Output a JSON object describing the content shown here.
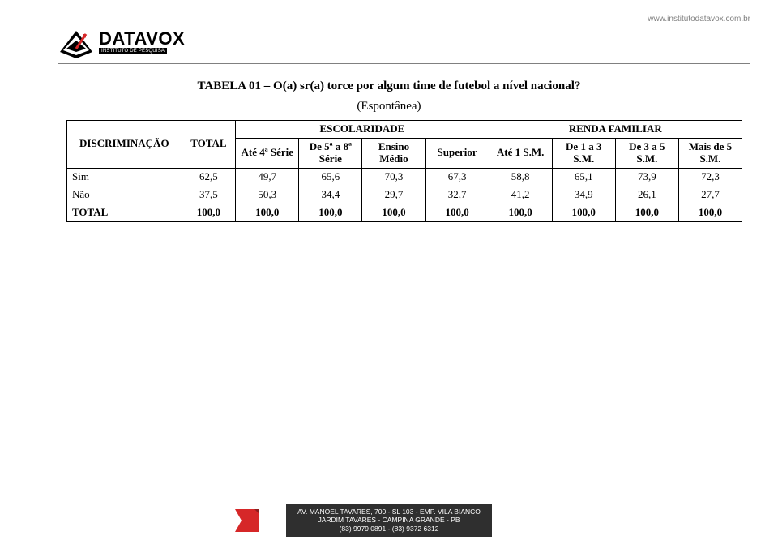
{
  "header": {
    "url": "www.institutodatavox.com.br",
    "logo_name": "DATAVOX",
    "logo_sub": "INSTITUTO DE PESQUISA",
    "logo_colors": {
      "black": "#000000",
      "red": "#d62728"
    },
    "rule_color": "#808080",
    "url_color": "#808080"
  },
  "title": "TABELA 01 – O(a) sr(a) torce por algum time de futebol a nível nacional?",
  "subtitle": "(Espontânea)",
  "table": {
    "type": "table",
    "border_color": "#000000",
    "font_family": "Times New Roman",
    "header_fontsize": 13,
    "cell_fontsize": 13,
    "background_color": "#ffffff",
    "col_widths_pct": [
      17,
      8,
      9.375,
      9.375,
      9.375,
      9.375,
      9.375,
      9.375,
      9.375,
      9.375
    ],
    "head": {
      "discriminacao": "DISCRIMINAÇÃO",
      "total": "TOTAL",
      "escolaridade": "ESCOLARIDADE",
      "renda": "RENDA FAMILIAR",
      "cols": [
        "Até 4ª Série",
        "De 5ª a 8ª Série",
        "Ensino Médio",
        "Superior",
        "Até 1 S.M.",
        "De 1 a 3 S.M.",
        "De 3 a 5 S.M.",
        "Mais de 5 S.M."
      ]
    },
    "rows": [
      {
        "label": "Sim",
        "values": [
          "62,5",
          "49,7",
          "65,6",
          "70,3",
          "67,3",
          "58,8",
          "65,1",
          "73,9",
          "72,3"
        ]
      },
      {
        "label": "Não",
        "values": [
          "37,5",
          "50,3",
          "34,4",
          "29,7",
          "32,7",
          "41,2",
          "34,9",
          "26,1",
          "27,7"
        ]
      },
      {
        "label": "TOTAL",
        "values": [
          "100,0",
          "100,0",
          "100,0",
          "100,0",
          "100,0",
          "100,0",
          "100,0",
          "100,0",
          "100,0"
        ],
        "bold": true
      }
    ]
  },
  "footer": {
    "bg": "#2f2f2f",
    "fg": "#ffffff",
    "ribbon_fill": "#d62728",
    "ribbon_shadow": "#8f1d1d",
    "line1": "AV. MANOEL TAVARES, 700 - SL 103 - EMP. VILA BIANCO",
    "line2": "JARDIM TAVARES - CAMPINA GRANDE - PB",
    "line3": "(83) 9979 0891 - (83) 9372 6312"
  }
}
